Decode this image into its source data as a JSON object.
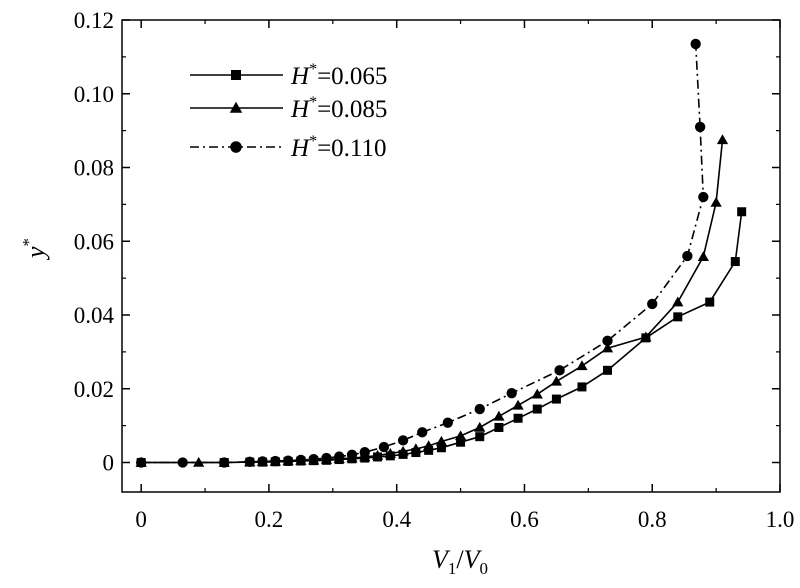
{
  "chart_data": {
    "type": "line",
    "title": "",
    "xlabel": {
      "base": "V",
      "sub1": "1",
      "sep": "/",
      "base2": "V",
      "sub2": "0"
    },
    "ylabel": {
      "base": "y",
      "sup": "*"
    },
    "xlim": [
      -0.03,
      1.0
    ],
    "ylim": [
      -0.008,
      0.12
    ],
    "xticks": [
      0,
      0.2,
      0.4,
      0.6,
      0.8,
      1.0
    ],
    "xtick_labels": [
      "0",
      "0.2",
      "0.4",
      "0.6",
      "0.8",
      "1.0"
    ],
    "yticks": [
      0,
      0.02,
      0.04,
      0.06,
      0.08,
      0.1,
      0.12
    ],
    "ytick_labels": [
      "0",
      "0.02",
      "0.04",
      "0.06",
      "0.08",
      "0.10",
      "0.12"
    ],
    "grid": false,
    "legend_position": "top-left",
    "series": [
      {
        "name": "H*=0.065",
        "label": {
          "base": "H",
          "sup": "*",
          "rest": "=0.065"
        },
        "marker": "square",
        "linestyle": "solid",
        "x": [
          0,
          0.13,
          0.17,
          0.19,
          0.21,
          0.23,
          0.25,
          0.27,
          0.29,
          0.31,
          0.33,
          0.35,
          0.37,
          0.39,
          0.41,
          0.43,
          0.45,
          0.47,
          0.5,
          0.53,
          0.56,
          0.59,
          0.62,
          0.65,
          0.69,
          0.73,
          0.79,
          0.84,
          0.89,
          0.93,
          0.94
        ],
        "y": [
          0,
          0,
          0.0001,
          0.0001,
          0.0002,
          0.0003,
          0.0004,
          0.0005,
          0.0006,
          0.0008,
          0.001,
          0.0012,
          0.0015,
          0.0018,
          0.0022,
          0.0027,
          0.0033,
          0.004,
          0.0055,
          0.007,
          0.0095,
          0.012,
          0.0145,
          0.0172,
          0.0205,
          0.025,
          0.0338,
          0.0395,
          0.0435,
          0.0545,
          0.068
        ]
      },
      {
        "name": "H*=0.085",
        "label": {
          "base": "H",
          "sup": "*",
          "rest": "=0.085"
        },
        "marker": "triangle",
        "linestyle": "solid",
        "x": [
          0,
          0.09,
          0.13,
          0.17,
          0.19,
          0.21,
          0.23,
          0.25,
          0.27,
          0.29,
          0.31,
          0.33,
          0.35,
          0.37,
          0.39,
          0.41,
          0.43,
          0.45,
          0.47,
          0.5,
          0.53,
          0.56,
          0.59,
          0.62,
          0.65,
          0.69,
          0.73,
          0.79,
          0.84,
          0.88,
          0.9,
          0.91
        ],
        "y": [
          0,
          0,
          0,
          0.0001,
          0.0002,
          0.0003,
          0.0004,
          0.0005,
          0.0006,
          0.0008,
          0.001,
          0.0012,
          0.0015,
          0.0019,
          0.0024,
          0.003,
          0.0037,
          0.0045,
          0.0057,
          0.0072,
          0.0095,
          0.0125,
          0.0155,
          0.0185,
          0.022,
          0.0262,
          0.031,
          0.034,
          0.0435,
          0.0558,
          0.0705,
          0.0875
        ]
      },
      {
        "name": "H*=0.110",
        "label": {
          "base": "H",
          "sup": "*",
          "rest": "=0.110"
        },
        "marker": "circle",
        "linestyle": "dashdot",
        "x": [
          0,
          0.065,
          0.13,
          0.17,
          0.19,
          0.21,
          0.23,
          0.25,
          0.27,
          0.29,
          0.31,
          0.33,
          0.35,
          0.38,
          0.41,
          0.44,
          0.48,
          0.53,
          0.58,
          0.655,
          0.73,
          0.8,
          0.855,
          0.88,
          0.875,
          0.868
        ],
        "y": [
          0,
          0,
          0,
          0.0002,
          0.0003,
          0.0004,
          0.0005,
          0.0007,
          0.0009,
          0.0012,
          0.0016,
          0.0021,
          0.0028,
          0.0042,
          0.006,
          0.0082,
          0.0108,
          0.0145,
          0.0188,
          0.025,
          0.033,
          0.043,
          0.056,
          0.072,
          0.091,
          0.1135
        ]
      }
    ]
  }
}
